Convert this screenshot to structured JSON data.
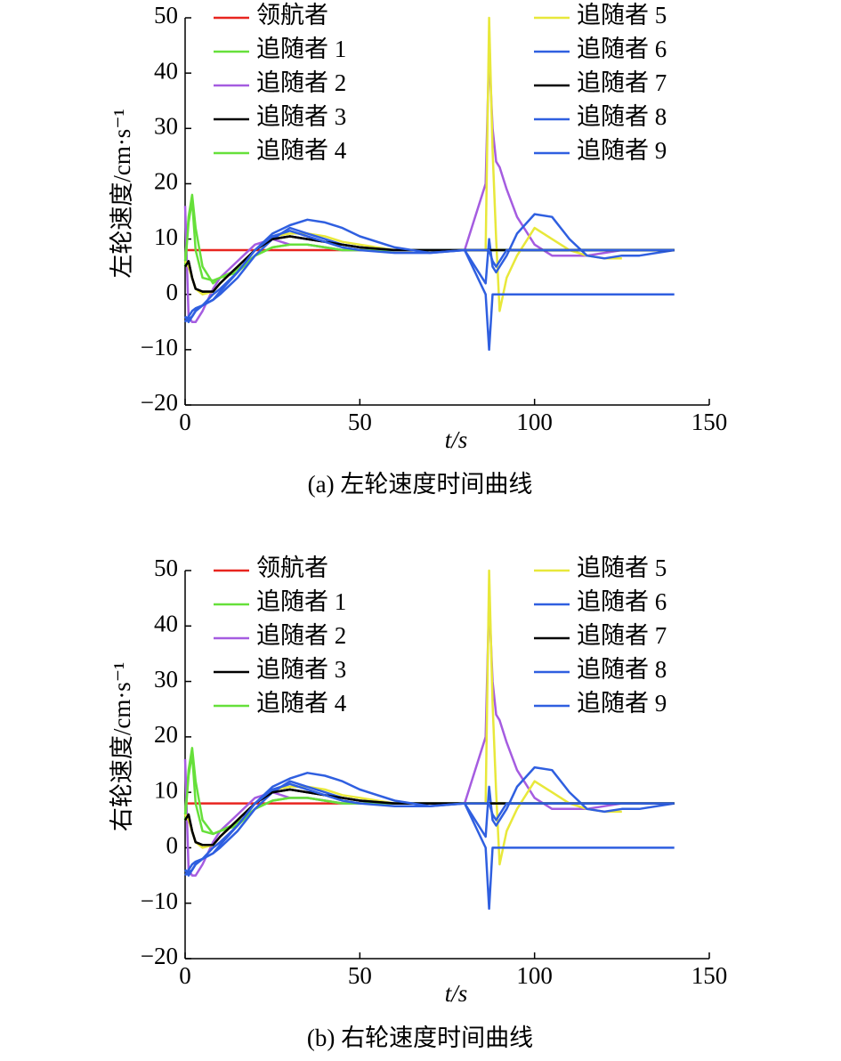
{
  "chart_data": [
    {
      "type": "line",
      "caption": "(a) 左轮速度时间曲线",
      "xlabel": "t/s",
      "ylabel": "左轮速度/cm·s⁻¹",
      "xlim": [
        0,
        150
      ],
      "ylim": [
        -20,
        50
      ],
      "xticks": [
        0,
        50,
        100,
        150
      ],
      "yticks": [
        {
          "value": -20,
          "label": "−20"
        },
        {
          "value": -10,
          "label": "−10"
        },
        0,
        10,
        20,
        30,
        40,
        50
      ],
      "x": [
        0,
        1,
        2,
        3,
        5,
        8,
        10,
        15,
        20,
        25,
        30,
        35,
        40,
        45,
        50,
        60,
        70,
        80,
        86,
        87,
        88,
        89,
        90,
        92,
        95,
        100,
        105,
        110,
        115,
        120,
        125,
        130,
        140
      ],
      "series": [
        {
          "name": "领航者",
          "color": "#e8251f",
          "values": [
            8,
            8,
            8,
            8,
            8,
            8,
            8,
            8,
            8,
            8,
            8,
            8,
            8,
            8,
            8,
            8,
            8,
            8,
            8,
            8,
            8,
            8,
            8,
            8,
            8,
            8,
            8,
            8,
            8,
            8,
            8,
            8,
            8
          ]
        },
        {
          "name": "追随者 1",
          "color": "#66e03a",
          "values": [
            6,
            14,
            18,
            12,
            5,
            2,
            3,
            4,
            7,
            8.5,
            9,
            9,
            8.5,
            8,
            8,
            8,
            8,
            8,
            8,
            8,
            8,
            8,
            8,
            8,
            8,
            8,
            8,
            8,
            8,
            8,
            8,
            8,
            8
          ]
        },
        {
          "name": "追随者 2",
          "color": "#a55ce0",
          "values": [
            16,
            -4,
            -5,
            -5,
            -3,
            1,
            3,
            6,
            9,
            10,
            9,
            9,
            8.5,
            8,
            8,
            8,
            8,
            8,
            20,
            44,
            30,
            24,
            23,
            19,
            14,
            9,
            7,
            7,
            7,
            7.5,
            8,
            8,
            8
          ]
        },
        {
          "name": "追随者 3",
          "color": "#000000",
          "values": [
            5,
            6,
            3,
            1,
            0.5,
            0.5,
            2,
            5,
            8,
            10,
            10.5,
            10,
            9.5,
            9,
            8.5,
            8,
            8,
            8,
            8,
            8,
            8,
            8,
            8,
            8,
            8,
            8,
            8,
            8,
            8,
            8,
            8,
            8,
            8
          ]
        },
        {
          "name": "追随者 4",
          "color": "#66e03a",
          "values": [
            5,
            13,
            17,
            8,
            3,
            2.5,
            3,
            4.5,
            7,
            8.5,
            9,
            9,
            8.5,
            8,
            8,
            8,
            8,
            8,
            8,
            8,
            8,
            8,
            8,
            8,
            8,
            8,
            8,
            8,
            8,
            8,
            8,
            8,
            8
          ]
        },
        {
          "name": "追随者 5",
          "color": "#e8e83a",
          "values": [
            6,
            5,
            3,
            1,
            0,
            0.5,
            2,
            5,
            8,
            10.5,
            11,
            11,
            10.5,
            9.5,
            9,
            8,
            8,
            8,
            8,
            50,
            26,
            10,
            -3,
            3,
            7,
            12,
            10,
            8,
            7,
            6.5,
            6.5,
            null,
            null
          ]
        },
        {
          "name": "追随者 6",
          "color": "#2f5fe0",
          "values": [
            -4,
            -4.5,
            -4,
            -3,
            -2,
            -1,
            0,
            3,
            7,
            10,
            12,
            11,
            10,
            9,
            8.5,
            8,
            8,
            8,
            2,
            10,
            5,
            4,
            5,
            7,
            11,
            14.5,
            14,
            10,
            7,
            6.5,
            7,
            7,
            8
          ]
        },
        {
          "name": "追随者 7",
          "color": "#000000",
          "values": [
            5,
            6,
            3,
            1,
            0.5,
            0.5,
            2,
            5,
            8,
            10,
            10.5,
            10,
            9.5,
            9,
            8.5,
            8,
            8,
            8,
            8,
            8,
            8,
            8,
            8,
            8,
            8,
            8,
            8,
            8,
            8,
            8,
            8,
            8,
            8
          ]
        },
        {
          "name": "追随者 8",
          "color": "#2f5fe0",
          "values": [
            -5,
            -4,
            -3,
            -2.5,
            -2,
            -1,
            0.5,
            4,
            8,
            11,
            12.5,
            13.5,
            13,
            12,
            10.5,
            8.5,
            7.5,
            8,
            0,
            -10,
            0,
            0,
            0,
            0,
            0,
            0,
            0,
            0,
            0,
            0,
            0,
            0,
            0
          ]
        },
        {
          "name": "追随者 9",
          "color": "#2f5fe0",
          "values": [
            -4,
            -5,
            -4,
            -3,
            -2,
            0,
            1,
            4,
            8,
            10.5,
            11.5,
            10.5,
            9.5,
            8.5,
            8,
            7.5,
            7.5,
            8,
            8,
            8,
            6,
            5,
            6,
            8,
            8,
            8,
            8,
            8,
            8,
            8,
            8,
            8,
            8
          ]
        }
      ]
    },
    {
      "type": "line",
      "caption": "(b) 右轮速度时间曲线",
      "xlabel": "t/s",
      "ylabel": "右轮速度/cm·s⁻¹",
      "xlim": [
        0,
        150
      ],
      "ylim": [
        -20,
        50
      ],
      "xticks": [
        0,
        50,
        100,
        150
      ],
      "yticks": [
        {
          "value": -20,
          "label": "−20"
        },
        {
          "value": -10,
          "label": "−10"
        },
        0,
        10,
        20,
        30,
        40,
        50
      ],
      "x": [
        0,
        1,
        2,
        3,
        5,
        8,
        10,
        15,
        20,
        25,
        30,
        35,
        40,
        45,
        50,
        60,
        70,
        80,
        86,
        87,
        88,
        89,
        90,
        92,
        95,
        100,
        105,
        110,
        115,
        120,
        125,
        130,
        140
      ],
      "series": [
        {
          "name": "领航者",
          "color": "#e8251f",
          "values": [
            8,
            8,
            8,
            8,
            8,
            8,
            8,
            8,
            8,
            8,
            8,
            8,
            8,
            8,
            8,
            8,
            8,
            8,
            8,
            8,
            8,
            8,
            8,
            8,
            8,
            8,
            8,
            8,
            8,
            8,
            8,
            8,
            8
          ]
        },
        {
          "name": "追随者 1",
          "color": "#66e03a",
          "values": [
            6,
            14,
            18,
            12,
            5,
            2.5,
            3,
            4,
            7,
            8.5,
            9,
            9,
            8.5,
            8,
            8,
            8,
            8,
            8,
            8,
            8,
            8,
            8,
            8,
            8,
            8,
            8,
            8,
            8,
            8,
            8,
            8,
            8,
            8
          ]
        },
        {
          "name": "追随者 2",
          "color": "#a55ce0",
          "values": [
            16,
            -4,
            -5,
            -5,
            -3,
            1,
            3,
            6,
            9,
            10,
            9,
            9,
            8.5,
            8,
            8,
            8,
            8,
            8,
            20,
            45,
            30,
            24,
            23,
            19,
            14,
            9,
            7,
            7,
            7,
            7.5,
            8,
            8,
            8
          ]
        },
        {
          "name": "追随者 3",
          "color": "#000000",
          "values": [
            5,
            6,
            3,
            1,
            0.5,
            0.5,
            2,
            5,
            8,
            10,
            10.5,
            10,
            9.5,
            9,
            8.5,
            8,
            8,
            8,
            8,
            8,
            8,
            8,
            8,
            8,
            8,
            8,
            8,
            8,
            8,
            8,
            8,
            8,
            8
          ]
        },
        {
          "name": "追随者 4",
          "color": "#66e03a",
          "values": [
            5,
            13,
            17,
            8,
            3,
            2.5,
            3,
            4.5,
            7,
            8.5,
            9,
            9,
            8.5,
            8,
            8,
            8,
            8,
            8,
            8,
            8,
            8,
            8,
            8,
            8,
            8,
            8,
            8,
            8,
            8,
            8,
            8,
            8,
            8
          ]
        },
        {
          "name": "追随者 5",
          "color": "#e8e83a",
          "values": [
            6,
            5,
            3,
            1,
            0,
            0.5,
            2,
            5,
            8,
            10.5,
            11,
            11,
            10.5,
            9.5,
            9,
            8,
            8,
            8,
            8,
            50,
            26,
            10,
            -3,
            3,
            7,
            12,
            10,
            8,
            7,
            6.5,
            6.5,
            null,
            null
          ]
        },
        {
          "name": "追随者 6",
          "color": "#2f5fe0",
          "values": [
            -4,
            -4.5,
            -4,
            -3,
            -2,
            -1,
            0,
            3,
            7,
            10,
            12,
            11,
            10,
            9,
            8.5,
            8,
            8,
            8,
            2,
            11,
            5,
            4,
            5,
            7,
            11,
            14.5,
            14,
            10,
            7,
            6.5,
            7,
            7,
            8
          ]
        },
        {
          "name": "追随者 7",
          "color": "#000000",
          "values": [
            5,
            6,
            3,
            1,
            0.5,
            0.5,
            2,
            5,
            8,
            10,
            10.5,
            10,
            9.5,
            9,
            8.5,
            8,
            8,
            8,
            8,
            8,
            8,
            8,
            8,
            8,
            8,
            8,
            8,
            8,
            8,
            8,
            8,
            8,
            8
          ]
        },
        {
          "name": "追随者 8",
          "color": "#2f5fe0",
          "values": [
            -5,
            -4,
            -3,
            -2.5,
            -2,
            -1,
            0.5,
            4,
            8,
            11,
            12.5,
            13.5,
            13,
            12,
            10.5,
            8.5,
            7.5,
            8,
            0,
            -11,
            0,
            0,
            0,
            0,
            0,
            0,
            0,
            0,
            0,
            0,
            0,
            0,
            0
          ]
        },
        {
          "name": "追随者 9",
          "color": "#2f5fe0",
          "values": [
            -4,
            -5,
            -4,
            -3,
            -2,
            0,
            1,
            4,
            8,
            10.5,
            11.5,
            10.5,
            9.5,
            8.5,
            8,
            7.5,
            7.5,
            8,
            8,
            8,
            6,
            5,
            6,
            8,
            8,
            8,
            8,
            8,
            8,
            8,
            8,
            8,
            8
          ]
        }
      ]
    }
  ]
}
